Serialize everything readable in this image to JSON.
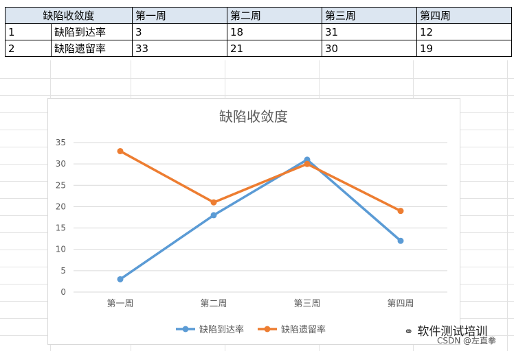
{
  "table": {
    "header": [
      "缺陷收敛度",
      "第一周",
      "第二周",
      "第三周",
      "第四周"
    ],
    "rows": [
      [
        "1",
        "缺陷到达率",
        "3",
        "18",
        "31",
        "12"
      ],
      [
        "2",
        "缺陷遗留率",
        "33",
        "21",
        "30",
        "19"
      ]
    ]
  },
  "chart_data": {
    "type": "line",
    "title": "缺陷收敛度",
    "categories": [
      "第一周",
      "第二周",
      "第三周",
      "第四周"
    ],
    "series": [
      {
        "name": "缺陷到达率",
        "values": [
          3,
          18,
          31,
          12
        ],
        "color": "#5b9bd5"
      },
      {
        "name": "缺陷遗留率",
        "values": [
          33,
          21,
          30,
          19
        ],
        "color": "#ed7d31"
      }
    ],
    "ylim": [
      0,
      35
    ],
    "yticks": [
      0,
      5,
      10,
      15,
      20,
      25,
      30,
      35
    ],
    "grid": true,
    "legend": "bottom",
    "xlabel": "",
    "ylabel": ""
  },
  "watermark": {
    "brand": "软件测试培训",
    "brand_icon": "wechat-icon",
    "csdn": "CSDN @左直拳"
  }
}
